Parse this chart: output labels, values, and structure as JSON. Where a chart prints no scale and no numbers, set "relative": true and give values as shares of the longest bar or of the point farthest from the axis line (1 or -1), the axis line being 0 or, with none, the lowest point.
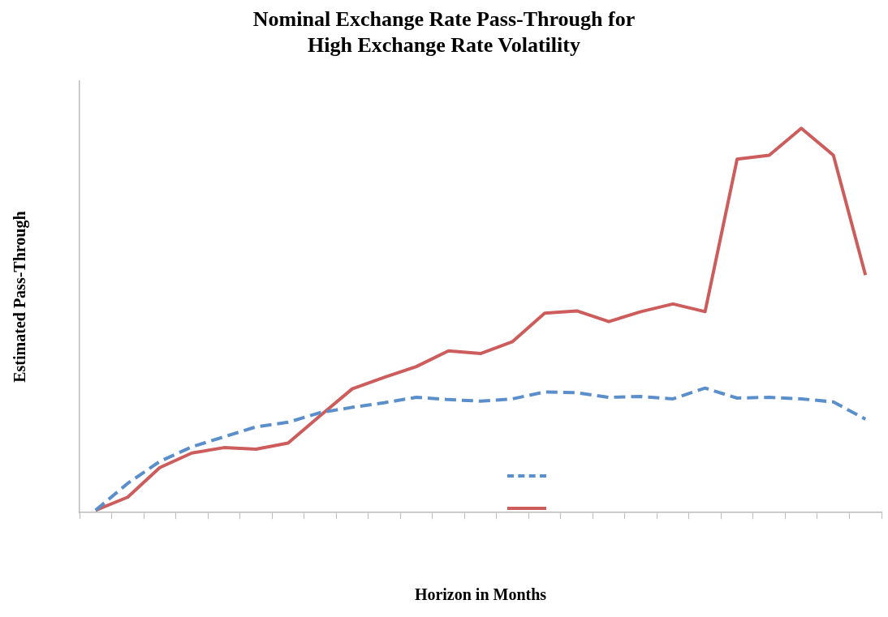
{
  "chart_data": {
    "type": "line",
    "title": "Nominal Exchange Rate Pass-Through for High Exchange Rate Volatility",
    "xlabel": "Horizon in Months",
    "ylabel": "Estimated Pass-Through",
    "relative": true,
    "marker": "none",
    "grid": false,
    "categories": [
      null,
      null,
      null,
      null,
      null,
      null,
      null,
      null,
      null,
      null,
      null,
      null,
      null,
      null,
      null,
      null,
      null,
      null,
      null,
      null,
      null,
      null,
      null,
      null,
      null
    ],
    "series": [
      {
        "color": "#5b8fcb",
        "line_style": "dashed",
        "values": [
          0.006,
          0.076,
          0.133,
          0.171,
          0.197,
          0.223,
          0.235,
          0.26,
          0.274,
          0.286,
          0.3,
          0.294,
          0.29,
          0.296,
          0.314,
          0.312,
          0.3,
          0.302,
          0.296,
          0.324,
          0.298,
          0.3,
          0.296,
          0.288,
          0.243
        ]
      },
      {
        "color": "#cd5c5c",
        "line_style": "solid",
        "values": [
          0.006,
          0.04,
          0.117,
          0.155,
          0.169,
          0.165,
          0.181,
          0.252,
          0.322,
          0.352,
          0.38,
          0.421,
          0.414,
          0.445,
          0.519,
          0.525,
          0.497,
          0.523,
          0.543,
          0.523,
          0.92,
          0.93,
          1,
          0.93,
          0.618
        ]
      }
    ]
  }
}
